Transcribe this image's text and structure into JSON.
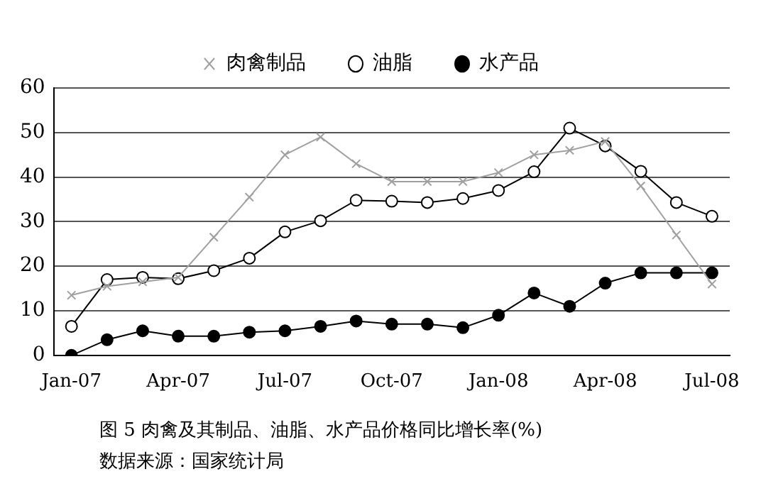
{
  "chart_data": {
    "type": "line",
    "title": "图 5  肉禽及其制品、油脂、水产品价格同比增长率(%)",
    "annotations": [
      "数据来源：国家统计局"
    ],
    "categories": [
      "Jan-07",
      null,
      null,
      "Apr-07",
      null,
      null,
      "Jul-07",
      null,
      null,
      "Oct-07",
      null,
      null,
      "Jan-08",
      null,
      null,
      "Apr-08",
      null,
      null,
      "Jul-08"
    ],
    "series": [
      {
        "name": "肉禽制品",
        "color": "#a0a0a0",
        "marker": "cross",
        "values": [
          13.5,
          15.5,
          16.5,
          17.5,
          26.5,
          35.5,
          45,
          49,
          43,
          39,
          39,
          39,
          41,
          45,
          46,
          48,
          38,
          27,
          16
        ]
      },
      {
        "name": "油脂",
        "color": "#000000",
        "marker": "circle",
        "values": [
          6.5,
          17,
          17.5,
          17.2,
          19,
          21.8,
          27.7,
          30.2,
          34.8,
          34.6,
          34.3,
          35.2,
          37,
          41.2,
          51,
          47,
          41.3,
          34.3,
          31.2
        ]
      },
      {
        "name": "水产品",
        "color": "#000000",
        "marker": "circle",
        "values": [
          0,
          3.5,
          5.5,
          4.3,
          4.3,
          5.2,
          5.5,
          6.5,
          7.7,
          7,
          7,
          6.2,
          9,
          14,
          11,
          16.2,
          18.5,
          18.5,
          18.5
        ]
      }
    ],
    "ylim": [
      0,
      60
    ],
    "yticks": [
      0,
      10,
      20,
      30,
      40,
      50,
      60
    ],
    "grid": "y",
    "legend": "top"
  }
}
